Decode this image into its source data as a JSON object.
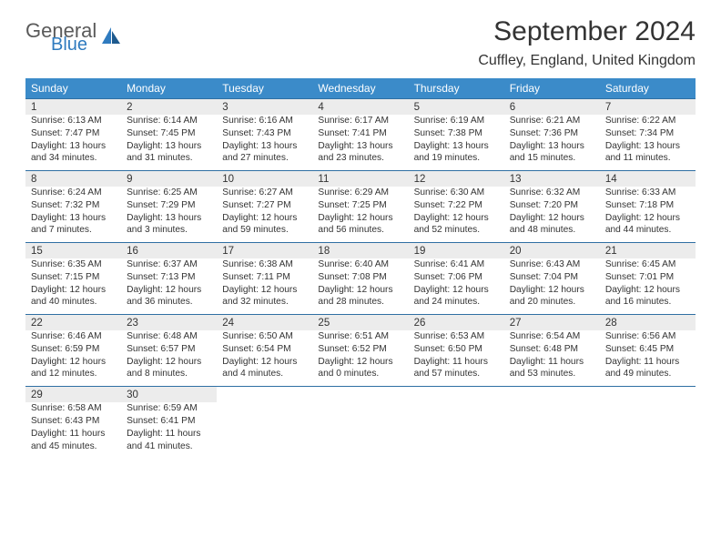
{
  "logo": {
    "text1": "General",
    "text2": "Blue",
    "icon_color": "#2f7bbf"
  },
  "title": "September 2024",
  "location": "Cuffley, England, United Kingdom",
  "colors": {
    "header_bg": "#3b8bc9",
    "daynum_bg": "#ececec",
    "row_border": "#2f6fa3",
    "text": "#333333"
  },
  "layout": {
    "columns": 7
  },
  "weekdays": [
    "Sunday",
    "Monday",
    "Tuesday",
    "Wednesday",
    "Thursday",
    "Friday",
    "Saturday"
  ],
  "weeks": [
    [
      {
        "n": "1",
        "sr": "6:13 AM",
        "ss": "7:47 PM",
        "dl": "13 hours and 34 minutes."
      },
      {
        "n": "2",
        "sr": "6:14 AM",
        "ss": "7:45 PM",
        "dl": "13 hours and 31 minutes."
      },
      {
        "n": "3",
        "sr": "6:16 AM",
        "ss": "7:43 PM",
        "dl": "13 hours and 27 minutes."
      },
      {
        "n": "4",
        "sr": "6:17 AM",
        "ss": "7:41 PM",
        "dl": "13 hours and 23 minutes."
      },
      {
        "n": "5",
        "sr": "6:19 AM",
        "ss": "7:38 PM",
        "dl": "13 hours and 19 minutes."
      },
      {
        "n": "6",
        "sr": "6:21 AM",
        "ss": "7:36 PM",
        "dl": "13 hours and 15 minutes."
      },
      {
        "n": "7",
        "sr": "6:22 AM",
        "ss": "7:34 PM",
        "dl": "13 hours and 11 minutes."
      }
    ],
    [
      {
        "n": "8",
        "sr": "6:24 AM",
        "ss": "7:32 PM",
        "dl": "13 hours and 7 minutes."
      },
      {
        "n": "9",
        "sr": "6:25 AM",
        "ss": "7:29 PM",
        "dl": "13 hours and 3 minutes."
      },
      {
        "n": "10",
        "sr": "6:27 AM",
        "ss": "7:27 PM",
        "dl": "12 hours and 59 minutes."
      },
      {
        "n": "11",
        "sr": "6:29 AM",
        "ss": "7:25 PM",
        "dl": "12 hours and 56 minutes."
      },
      {
        "n": "12",
        "sr": "6:30 AM",
        "ss": "7:22 PM",
        "dl": "12 hours and 52 minutes."
      },
      {
        "n": "13",
        "sr": "6:32 AM",
        "ss": "7:20 PM",
        "dl": "12 hours and 48 minutes."
      },
      {
        "n": "14",
        "sr": "6:33 AM",
        "ss": "7:18 PM",
        "dl": "12 hours and 44 minutes."
      }
    ],
    [
      {
        "n": "15",
        "sr": "6:35 AM",
        "ss": "7:15 PM",
        "dl": "12 hours and 40 minutes."
      },
      {
        "n": "16",
        "sr": "6:37 AM",
        "ss": "7:13 PM",
        "dl": "12 hours and 36 minutes."
      },
      {
        "n": "17",
        "sr": "6:38 AM",
        "ss": "7:11 PM",
        "dl": "12 hours and 32 minutes."
      },
      {
        "n": "18",
        "sr": "6:40 AM",
        "ss": "7:08 PM",
        "dl": "12 hours and 28 minutes."
      },
      {
        "n": "19",
        "sr": "6:41 AM",
        "ss": "7:06 PM",
        "dl": "12 hours and 24 minutes."
      },
      {
        "n": "20",
        "sr": "6:43 AM",
        "ss": "7:04 PM",
        "dl": "12 hours and 20 minutes."
      },
      {
        "n": "21",
        "sr": "6:45 AM",
        "ss": "7:01 PM",
        "dl": "12 hours and 16 minutes."
      }
    ],
    [
      {
        "n": "22",
        "sr": "6:46 AM",
        "ss": "6:59 PM",
        "dl": "12 hours and 12 minutes."
      },
      {
        "n": "23",
        "sr": "6:48 AM",
        "ss": "6:57 PM",
        "dl": "12 hours and 8 minutes."
      },
      {
        "n": "24",
        "sr": "6:50 AM",
        "ss": "6:54 PM",
        "dl": "12 hours and 4 minutes."
      },
      {
        "n": "25",
        "sr": "6:51 AM",
        "ss": "6:52 PM",
        "dl": "12 hours and 0 minutes."
      },
      {
        "n": "26",
        "sr": "6:53 AM",
        "ss": "6:50 PM",
        "dl": "11 hours and 57 minutes."
      },
      {
        "n": "27",
        "sr": "6:54 AM",
        "ss": "6:48 PM",
        "dl": "11 hours and 53 minutes."
      },
      {
        "n": "28",
        "sr": "6:56 AM",
        "ss": "6:45 PM",
        "dl": "11 hours and 49 minutes."
      }
    ],
    [
      {
        "n": "29",
        "sr": "6:58 AM",
        "ss": "6:43 PM",
        "dl": "11 hours and 45 minutes."
      },
      {
        "n": "30",
        "sr": "6:59 AM",
        "ss": "6:41 PM",
        "dl": "11 hours and 41 minutes."
      },
      null,
      null,
      null,
      null,
      null
    ]
  ],
  "labels": {
    "sunrise": "Sunrise: ",
    "sunset": "Sunset: ",
    "daylight": "Daylight: "
  }
}
